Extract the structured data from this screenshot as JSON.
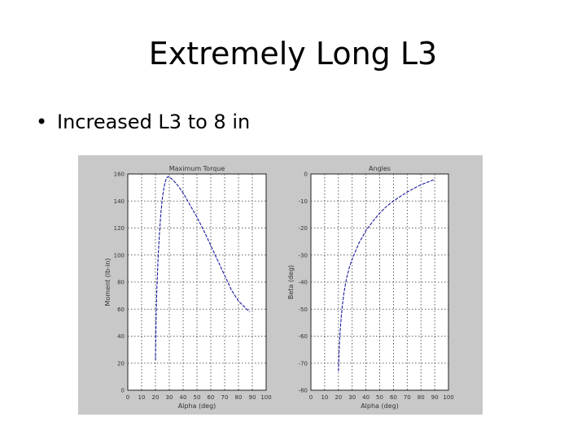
{
  "slide": {
    "title": "Extremely Long L3",
    "bullet": "Increased L3 to 8 in"
  },
  "colors": {
    "panel_bg": "#c8c8c8",
    "axes_bg": "#ffffff",
    "curve": "#1a1a9c"
  },
  "chart_data": [
    {
      "type": "line",
      "title": "Maximum Torque",
      "xlabel": "Alpha (deg)",
      "ylabel": "Moment (lb-in)",
      "xlim": [
        0,
        100
      ],
      "ylim": [
        0,
        160
      ],
      "xticks": [
        0,
        10,
        20,
        30,
        40,
        50,
        60,
        70,
        80,
        90,
        100
      ],
      "yticks": [
        0,
        20,
        40,
        60,
        80,
        100,
        120,
        140,
        160
      ],
      "grid": "dotted",
      "series": [
        {
          "x": [
            20,
            20.5,
            21,
            22,
            23,
            24,
            25,
            26,
            27,
            28,
            29,
            30,
            35,
            40,
            45,
            50,
            55,
            60,
            65,
            70,
            75,
            80,
            85,
            88
          ],
          "y": [
            22,
            55,
            75,
            100,
            118,
            132,
            142,
            149,
            154,
            157,
            158,
            158,
            153,
            146,
            137,
            128,
            118,
            107,
            96,
            85,
            74,
            66,
            61,
            58
          ]
        }
      ]
    },
    {
      "type": "line",
      "title": "Angles",
      "xlabel": "Alpha (deg)",
      "ylabel": "Beta (deg)",
      "xlim": [
        0,
        100
      ],
      "ylim": [
        -80,
        0
      ],
      "xticks": [
        0,
        10,
        20,
        30,
        40,
        50,
        60,
        70,
        80,
        90,
        100
      ],
      "yticks": [
        0,
        -10,
        -20,
        -30,
        -40,
        -50,
        -60,
        -70,
        -80
      ],
      "grid": "dotted",
      "series": [
        {
          "x": [
            20,
            20.5,
            21,
            22,
            23,
            24,
            25,
            26,
            28,
            30,
            35,
            40,
            45,
            50,
            55,
            60,
            65,
            70,
            75,
            80,
            85,
            90
          ],
          "y": [
            -73,
            -66,
            -60,
            -53,
            -48,
            -44,
            -41,
            -38.5,
            -34.5,
            -31.5,
            -25.5,
            -21,
            -17.5,
            -14.5,
            -12,
            -10,
            -8.3,
            -6.7,
            -5.3,
            -4,
            -3,
            -2
          ]
        }
      ]
    }
  ]
}
